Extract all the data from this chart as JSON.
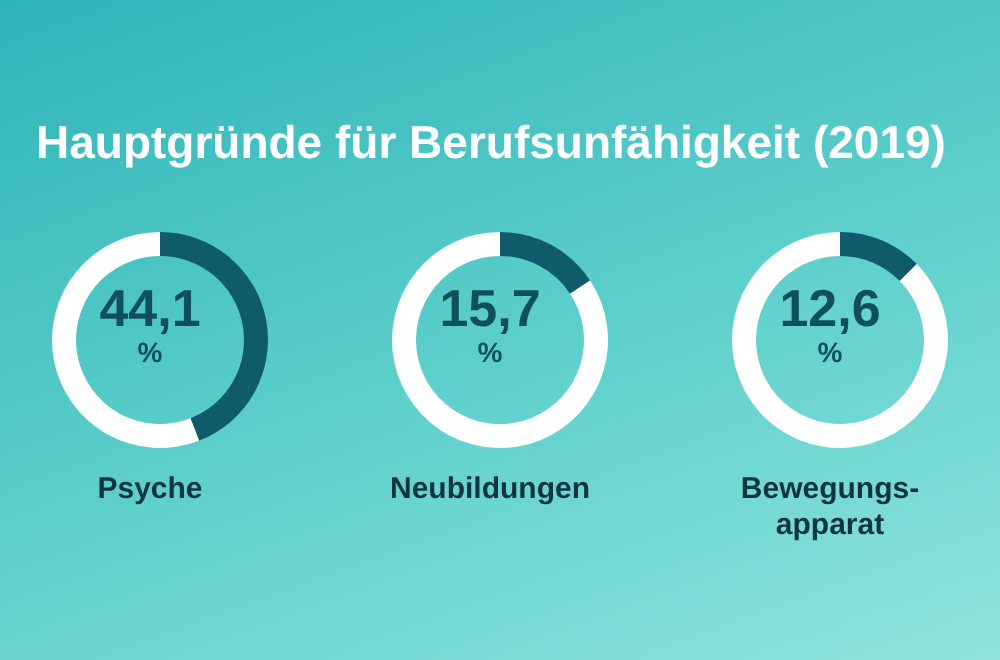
{
  "chart_data": [
    {
      "type": "donut",
      "title": "Hauptgründe für Berufsunfähigkeit (2019)",
      "xlabel": "Psyche",
      "categories": [
        null,
        null
      ],
      "values": [
        44.1,
        55.9
      ],
      "colors": [
        "#0f5b6c",
        "#ffffff"
      ],
      "annotations": [
        "44,1 %"
      ]
    },
    {
      "type": "donut",
      "xlabel": "Neubildungen",
      "categories": [
        null,
        null
      ],
      "values": [
        15.7,
        84.3
      ],
      "colors": [
        "#0f5b6c",
        "#ffffff"
      ],
      "annotations": [
        "15,7 %"
      ]
    },
    {
      "type": "donut",
      "xlabel": "Bewegungs-apparat",
      "categories": [
        null,
        null
      ],
      "values": [
        12.6,
        87.4
      ],
      "colors": [
        "#0f5b6c",
        "#ffffff"
      ],
      "annotations": [
        "12,6 %"
      ]
    }
  ]
}
